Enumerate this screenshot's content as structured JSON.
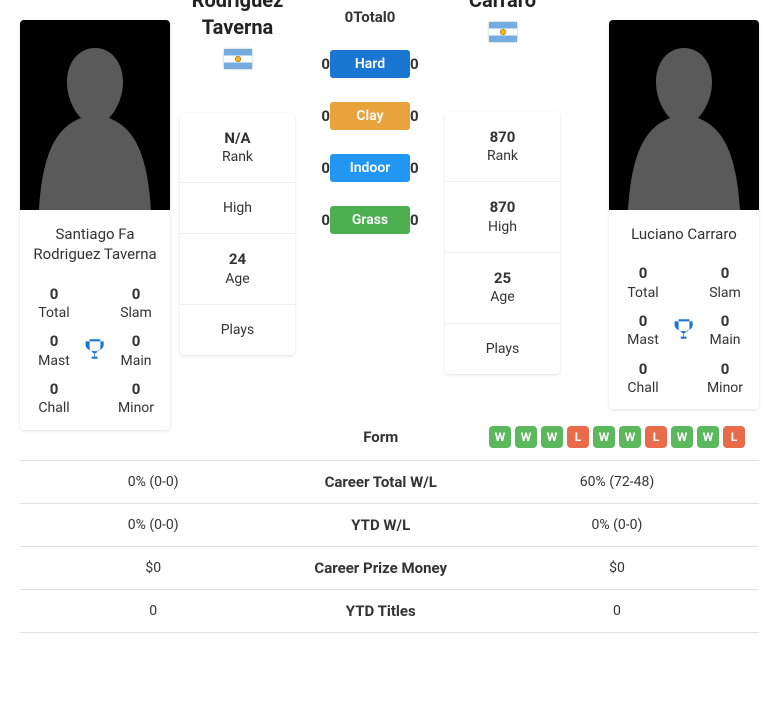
{
  "players": {
    "p1": {
      "name_card": "Santiago Fa Rodriguez Taverna",
      "name_header": "Santiago Fa\nRodriguez\nTaverna",
      "flag": "ar",
      "titles": {
        "total": "0",
        "slam": "0",
        "mast": "0",
        "main": "0",
        "chall": "0",
        "minor": "0"
      },
      "stats": {
        "rank": "N/A",
        "high": "",
        "age": "24",
        "plays": ""
      }
    },
    "p2": {
      "name_card": "Luciano Carraro",
      "name_header": "Luciano\nCarraro",
      "flag": "ar",
      "titles": {
        "total": "0",
        "slam": "0",
        "mast": "0",
        "main": "0",
        "chall": "0",
        "minor": "0"
      },
      "stats": {
        "rank": "870",
        "high": "870",
        "age": "25",
        "plays": ""
      }
    }
  },
  "title_labels": {
    "total": "Total",
    "slam": "Slam",
    "mast": "Mast",
    "main": "Main",
    "chall": "Chall",
    "minor": "Minor"
  },
  "stat_labels": {
    "rank": "Rank",
    "high": "High",
    "age": "Age",
    "plays": "Plays"
  },
  "h2h": {
    "rows": [
      {
        "label": "Total",
        "chip_class": "",
        "p1": "0",
        "p2": "0"
      },
      {
        "label": "Hard",
        "chip_class": "chip-hard",
        "p1": "0",
        "p2": "0"
      },
      {
        "label": "Clay",
        "chip_class": "chip-clay",
        "p1": "0",
        "p2": "0"
      },
      {
        "label": "Indoor",
        "chip_class": "chip-indoor",
        "p1": "0",
        "p2": "0"
      },
      {
        "label": "Grass",
        "chip_class": "chip-grass",
        "p1": "0",
        "p2": "0"
      }
    ]
  },
  "bottom_rows": [
    {
      "label": "Form",
      "p1": [],
      "p2": [
        "W",
        "W",
        "W",
        "L",
        "W",
        "W",
        "L",
        "W",
        "W",
        "L"
      ],
      "type": "form"
    },
    {
      "label": "Career Total W/L",
      "p1": "0% (0-0)",
      "p2": "60% (72-48)",
      "type": "text"
    },
    {
      "label": "YTD W/L",
      "p1": "0% (0-0)",
      "p2": "0% (0-0)",
      "type": "text"
    },
    {
      "label": "Career Prize Money",
      "p1": "$0",
      "p2": "$0",
      "type": "text"
    },
    {
      "label": "YTD Titles",
      "p1": "0",
      "p2": "0",
      "type": "text"
    }
  ],
  "colors": {
    "hard": "#1976d2",
    "clay": "#e8a33d",
    "indoor": "#2196f3",
    "grass": "#4caf50",
    "win": "#5cb85c",
    "loss": "#e86c4a",
    "trophy": "#1976d2"
  }
}
